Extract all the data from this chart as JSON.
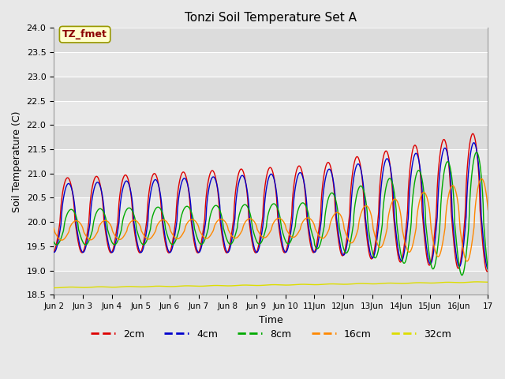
{
  "title": "Tonzi Soil Temperature Set A",
  "ylabel": "Soil Temperature (C)",
  "xlabel": "Time",
  "ylim": [
    18.5,
    24.0
  ],
  "yticks": [
    18.5,
    19.0,
    19.5,
    20.0,
    20.5,
    21.0,
    21.5,
    22.0,
    22.5,
    23.0,
    23.5,
    24.0
  ],
  "xtick_labels": [
    "Jun 2",
    "Jun 3",
    "Jun 4",
    "Jun 5",
    "Jun 6",
    "Jun 7",
    "Jun 8",
    "Jun 9",
    "Jun 10",
    "11Jun",
    "12Jun",
    "13Jun",
    "14Jun",
    "15Jun",
    "16Jun",
    "17"
  ],
  "annotation_text": "TZ_fmet",
  "annotation_color": "#8B0000",
  "annotation_bg": "#FFFFCC",
  "annotation_border": "#999900",
  "line_colors": [
    "#DD0000",
    "#0000CC",
    "#00AA00",
    "#FF8800",
    "#DDDD00"
  ],
  "line_labels": [
    "2cm",
    "4cm",
    "8cm",
    "16cm",
    "32cm"
  ],
  "bg_bands_dark": "#DCDCDC",
  "bg_bands_light": "#E8E8E8",
  "fig_bg": "#E8E8E8"
}
